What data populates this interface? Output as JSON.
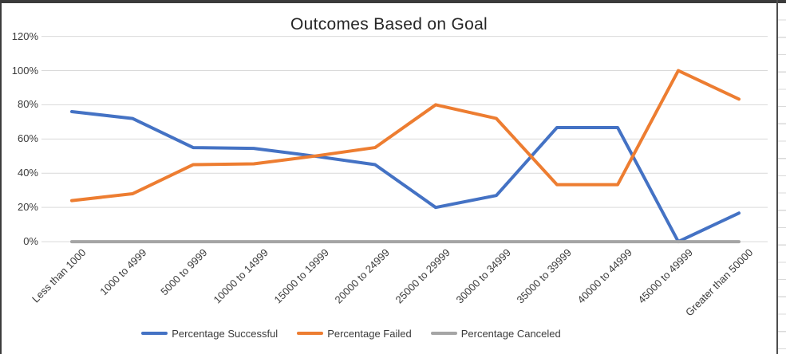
{
  "window": {
    "top_edge_color": "#3b3b3b",
    "left_edge_color": "#3b3b3b",
    "worksheet_divider_color": "#4d4d4d",
    "worksheet_gridline_color": "#d9d9d9"
  },
  "chart_data": {
    "type": "line",
    "title": "Outcomes Based on Goal",
    "title_color": "#262626",
    "grid": true,
    "gridline_color": "#d9d9d9",
    "legend_position": "bottom",
    "categories": [
      "Less than 1000",
      "1000 to 4999",
      "5000 to 9999",
      "10000 to 14999",
      "15000 to 19999",
      "20000 to 24999",
      "25000 to 29999",
      "30000 to 34999",
      "35000 to 39999",
      "40000 to 44999",
      "45000 to 49999",
      "Greater than 50000"
    ],
    "series": [
      {
        "name": "Percentage Successful",
        "color": "#4472C4",
        "values": [
          76,
          72,
          55,
          54.5,
          50,
          45,
          20,
          27,
          66.7,
          66.7,
          0,
          16.7
        ]
      },
      {
        "name": "Percentage Failed",
        "color": "#ED7D31",
        "values": [
          24,
          28,
          45,
          45.5,
          50,
          55,
          80,
          72,
          33.3,
          33.3,
          100,
          83.3
        ]
      },
      {
        "name": "Percentage Canceled",
        "color": "#A5A5A5",
        "values": [
          0,
          0,
          0,
          0,
          0,
          0,
          0,
          0,
          0,
          0,
          0,
          0
        ]
      }
    ],
    "y_axis": {
      "min": 0,
      "max": 120,
      "step": 20,
      "unit": "percent",
      "tick_labels": [
        "0%",
        "20%",
        "40%",
        "60%",
        "80%",
        "100%",
        "120%"
      ]
    },
    "x_axis": {
      "label_rotation_degrees": 45
    }
  }
}
